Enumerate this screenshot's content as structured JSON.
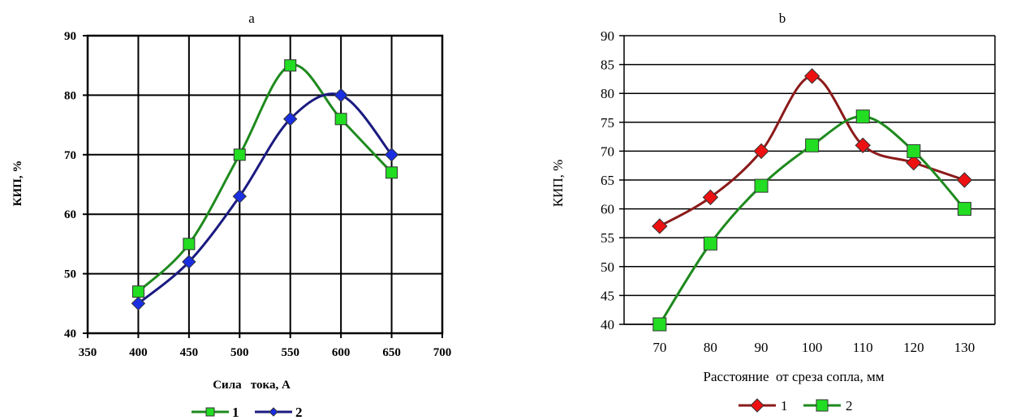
{
  "chart_data": [
    {
      "panel": "a",
      "type": "line",
      "title": "a",
      "xlabel": "Сила   тока, А",
      "ylabel": "КИП, %",
      "xlim": [
        350,
        700
      ],
      "ylim": [
        40,
        90
      ],
      "xticks": [
        350,
        400,
        450,
        500,
        550,
        600,
        650,
        700
      ],
      "yticks": [
        40,
        50,
        60,
        70,
        80,
        90
      ],
      "grid": true,
      "smooth": true,
      "legend_position": "bottom",
      "series": [
        {
          "name": "1",
          "x": [
            400,
            450,
            500,
            550,
            600,
            650
          ],
          "values": [
            47,
            55,
            70,
            85,
            76,
            67
          ],
          "color": "#1e8a1e",
          "marker": "square",
          "marker_color": "#22dd22"
        },
        {
          "name": "2",
          "x": [
            400,
            450,
            500,
            550,
            600,
            650
          ],
          "values": [
            45,
            52,
            63,
            76,
            80,
            70
          ],
          "color": "#1a1a80",
          "marker": "diamond",
          "marker_color": "#1a2fe0"
        }
      ]
    },
    {
      "panel": "b",
      "type": "line",
      "title": "b",
      "xlabel": "Расстояние  от среза сопла, мм",
      "ylabel": "КИП, %",
      "ylim": [
        40,
        90
      ],
      "categories": [
        "70",
        "80",
        "90",
        "100",
        "110",
        "120",
        "130"
      ],
      "yticks": [
        40,
        45,
        50,
        55,
        60,
        65,
        70,
        75,
        80,
        85,
        90
      ],
      "grid": true,
      "smooth": true,
      "legend_position": "bottom",
      "series": [
        {
          "name": "1",
          "values": [
            57,
            62,
            70,
            83,
            71,
            68,
            65
          ],
          "color": "#8b1a1a",
          "marker": "diamond",
          "marker_color": "#ee1111"
        },
        {
          "name": "2",
          "values": [
            40,
            54,
            64,
            71,
            76,
            70,
            60
          ],
          "color": "#1e8a1e",
          "marker": "square",
          "marker_color": "#22dd22"
        }
      ]
    }
  ]
}
